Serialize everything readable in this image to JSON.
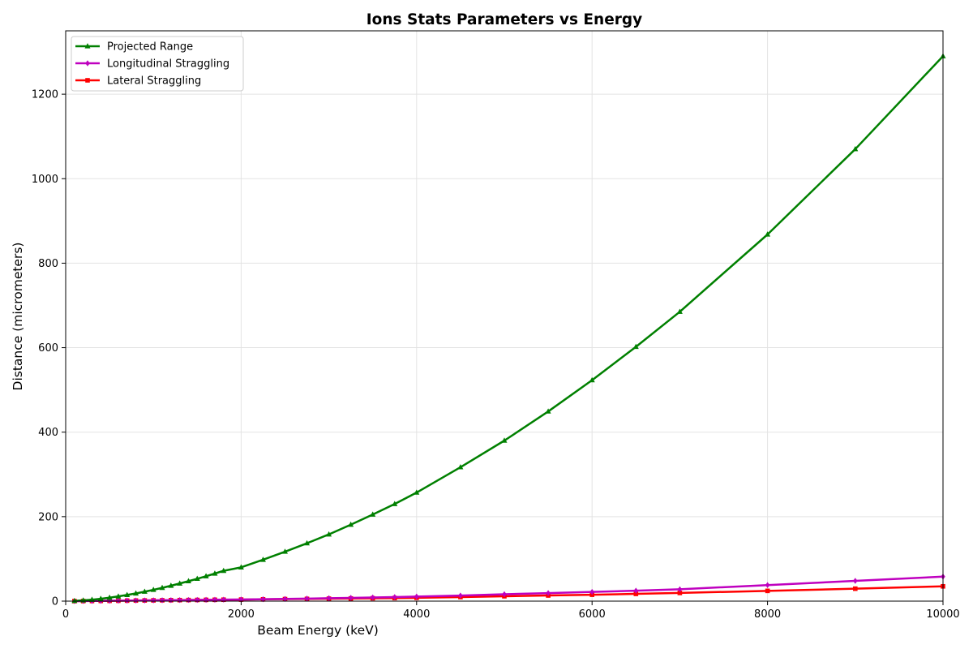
{
  "chart_data": {
    "type": "line",
    "title": "Ions Stats Parameters vs Energy",
    "xlabel": "Beam Energy (keV)",
    "ylabel": "Distance (micrometers)",
    "xlim": [
      0,
      10000
    ],
    "ylim": [
      0,
      1350
    ],
    "xticks": [
      0,
      2000,
      4000,
      6000,
      8000,
      10000
    ],
    "yticks": [
      0,
      200,
      400,
      600,
      800,
      1000,
      1200
    ],
    "grid": true,
    "legend_position": "top-left",
    "series": [
      {
        "name": "Projected Range",
        "color": "#008000",
        "marker": "triangle",
        "x": [
          100,
          200,
          300,
          400,
          500,
          600,
          700,
          800,
          900,
          1000,
          1100,
          1200,
          1300,
          1400,
          1500,
          1600,
          1700,
          1800,
          2000,
          2250,
          2500,
          2750,
          3000,
          3250,
          3500,
          3750,
          4000,
          4500,
          5000,
          5500,
          6000,
          6500,
          7000,
          8000,
          9000,
          10000
        ],
        "y": [
          0.6,
          1.8,
          3.4,
          5.6,
          8.2,
          11.2,
          14.6,
          18.3,
          22.4,
          26.8,
          31.5,
          36.5,
          41.8,
          47.3,
          53,
          59,
          65.3,
          71.8,
          80,
          98,
          117,
          137,
          158,
          181,
          205,
          230,
          257,
          317,
          380,
          449,
          523,
          602,
          685,
          868,
          1070,
          1290
        ]
      },
      {
        "name": "Longitudinal Straggling",
        "color": "#bf00bf",
        "marker": "diamond",
        "x": [
          100,
          200,
          300,
          400,
          500,
          600,
          700,
          800,
          900,
          1000,
          1100,
          1200,
          1300,
          1400,
          1500,
          1600,
          1700,
          1800,
          2000,
          2250,
          2500,
          2750,
          3000,
          3250,
          3500,
          3750,
          4000,
          4500,
          5000,
          5500,
          6000,
          6500,
          7000,
          8000,
          9000,
          10000
        ],
        "y": [
          0.1,
          0.3,
          0.5,
          0.7,
          0.9,
          1.1,
          1.3,
          1.5,
          1.7,
          1.9,
          2.1,
          2.3,
          2.5,
          2.7,
          2.9,
          3.1,
          3.3,
          3.5,
          3.9,
          4.5,
          5.2,
          6,
          6.9,
          7.8,
          8.7,
          9.7,
          10.8,
          13.3,
          16.3,
          19,
          21.8,
          24.8,
          28,
          38,
          48,
          58
        ]
      },
      {
        "name": "Lateral Straggling",
        "color": "#ff0000",
        "marker": "square",
        "x": [
          100,
          200,
          300,
          400,
          500,
          600,
          700,
          800,
          900,
          1000,
          1100,
          1200,
          1300,
          1400,
          1500,
          1600,
          1700,
          1800,
          2000,
          2250,
          2500,
          2750,
          3000,
          3250,
          3500,
          3750,
          4000,
          4500,
          5000,
          5500,
          6000,
          6500,
          7000,
          8000,
          9000,
          10000
        ],
        "y": [
          0.1,
          0.2,
          0.4,
          0.6,
          0.8,
          1,
          1.2,
          1.4,
          1.6,
          1.8,
          2,
          2.2,
          2.4,
          2.6,
          2.8,
          3,
          3.2,
          3.4,
          3.7,
          4.2,
          4.8,
          5.3,
          5.8,
          6.3,
          6.8,
          7.3,
          7.9,
          9.7,
          11.6,
          13.4,
          15.2,
          17.2,
          19.4,
          24.3,
          29.5,
          35
        ]
      }
    ]
  }
}
